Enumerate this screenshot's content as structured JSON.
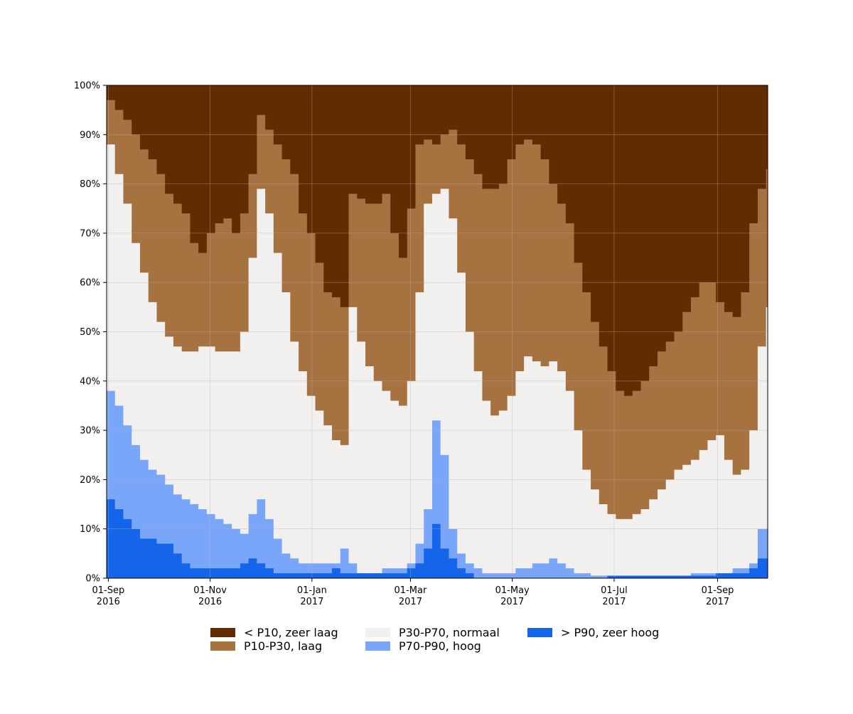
{
  "chart_data": {
    "type": "area",
    "stacked": true,
    "percent": true,
    "title": "",
    "xlabel": "",
    "ylabel": "",
    "ylim": [
      0,
      100
    ],
    "xlim": [
      "2016-08-31",
      "2017-10-01"
    ],
    "grid": true,
    "legend_position": "bottom",
    "y_ticks": [
      {
        "value": 0,
        "label": "0%"
      },
      {
        "value": 10,
        "label": "10%"
      },
      {
        "value": 20,
        "label": "20%"
      },
      {
        "value": 30,
        "label": "30%"
      },
      {
        "value": 40,
        "label": "40%"
      },
      {
        "value": 50,
        "label": "50%"
      },
      {
        "value": 60,
        "label": "60%"
      },
      {
        "value": 70,
        "label": "70%"
      },
      {
        "value": 80,
        "label": "80%"
      },
      {
        "value": 90,
        "label": "90%"
      },
      {
        "value": 100,
        "label": "100%"
      }
    ],
    "x_ticks": [
      {
        "date": "2016-09-01",
        "label1": "01-Sep",
        "label2": "2016"
      },
      {
        "date": "2016-11-01",
        "label1": "01-Nov",
        "label2": "2016"
      },
      {
        "date": "2017-01-01",
        "label1": "01-Jan",
        "label2": "2017"
      },
      {
        "date": "2017-03-01",
        "label1": "01-Mar",
        "label2": "2017"
      },
      {
        "date": "2017-05-01",
        "label1": "01-May",
        "label2": "2017"
      },
      {
        "date": "2017-07-01",
        "label1": "01-Jul",
        "label2": "2017"
      },
      {
        "date": "2017-09-01",
        "label1": "01-Sep",
        "label2": "2017"
      }
    ],
    "x": [
      "2016-08-31",
      "2016-09-05",
      "2016-09-10",
      "2016-09-15",
      "2016-09-20",
      "2016-09-25",
      "2016-09-30",
      "2016-10-05",
      "2016-10-10",
      "2016-10-15",
      "2016-10-20",
      "2016-10-25",
      "2016-10-30",
      "2016-11-04",
      "2016-11-09",
      "2016-11-14",
      "2016-11-19",
      "2016-11-24",
      "2016-11-29",
      "2016-12-04",
      "2016-12-09",
      "2016-12-14",
      "2016-12-19",
      "2016-12-24",
      "2016-12-29",
      "2017-01-03",
      "2017-01-08",
      "2017-01-13",
      "2017-01-18",
      "2017-01-23",
      "2017-01-28",
      "2017-02-02",
      "2017-02-07",
      "2017-02-12",
      "2017-02-17",
      "2017-02-22",
      "2017-02-27",
      "2017-03-04",
      "2017-03-09",
      "2017-03-14",
      "2017-03-19",
      "2017-03-24",
      "2017-03-29",
      "2017-04-03",
      "2017-04-08",
      "2017-04-13",
      "2017-04-18",
      "2017-04-23",
      "2017-04-28",
      "2017-05-03",
      "2017-05-08",
      "2017-05-13",
      "2017-05-18",
      "2017-05-23",
      "2017-05-28",
      "2017-06-02",
      "2017-06-07",
      "2017-06-12",
      "2017-06-17",
      "2017-06-22",
      "2017-06-27",
      "2017-07-02",
      "2017-07-07",
      "2017-07-12",
      "2017-07-17",
      "2017-07-22",
      "2017-07-27",
      "2017-08-01",
      "2017-08-06",
      "2017-08-11",
      "2017-08-16",
      "2017-08-21",
      "2017-08-26",
      "2017-08-31",
      "2017-09-05",
      "2017-09-10",
      "2017-09-15",
      "2017-09-20",
      "2017-09-25",
      "2017-09-30"
    ],
    "series": [
      {
        "name": "> P90, zeer hoog",
        "color": "#1565ea",
        "values": [
          16,
          14,
          12,
          10,
          8,
          8,
          7,
          7,
          5,
          3,
          2,
          2,
          2,
          2,
          2,
          2,
          3,
          4,
          3,
          2,
          1,
          1,
          1,
          1,
          1,
          1,
          1,
          2,
          1,
          1,
          1,
          1,
          1,
          1,
          1,
          1,
          2,
          3,
          6,
          11,
          6,
          4,
          2,
          1,
          0,
          0,
          0,
          0,
          0,
          0,
          0,
          0,
          0,
          0,
          0,
          0,
          0,
          0,
          0,
          0,
          0.5,
          0.5,
          0.5,
          0.5,
          0.5,
          0.5,
          0.5,
          0.5,
          0.5,
          0.5,
          0.5,
          0.5,
          0.5,
          1,
          1,
          1,
          1,
          2,
          4,
          4
        ]
      },
      {
        "name": "P70-P90, hoog",
        "color": "#7aa6f9",
        "values": [
          38,
          35,
          31,
          27,
          24,
          22,
          21,
          19,
          17,
          16,
          15,
          14,
          13,
          12,
          11,
          10,
          9,
          13,
          16,
          12,
          8,
          5,
          4,
          3,
          3,
          3,
          3,
          3,
          6,
          3,
          1,
          1,
          1,
          2,
          2,
          2,
          3,
          7,
          14,
          32,
          25,
          10,
          5,
          3,
          2,
          1,
          1,
          1,
          1,
          2,
          2,
          3,
          3,
          4,
          3,
          2,
          1,
          1,
          0.5,
          0.5,
          0.5,
          0.5,
          0.5,
          0.5,
          0.5,
          0.5,
          0.5,
          0.5,
          0.5,
          0.5,
          1,
          1,
          1,
          1,
          1,
          2,
          2,
          3,
          10,
          10
        ]
      },
      {
        "name": "P30-P70, normaal",
        "color": "#f2f0ef",
        "values": [
          88,
          82,
          76,
          68,
          62,
          56,
          52,
          49,
          47,
          46,
          46,
          47,
          47,
          46,
          46,
          46,
          50,
          65,
          79,
          74,
          66,
          58,
          48,
          42,
          37,
          34,
          31,
          28,
          27,
          55,
          48,
          43,
          40,
          38,
          36,
          35,
          40,
          58,
          76,
          78,
          79,
          73,
          62,
          50,
          42,
          36,
          33,
          34,
          37,
          42,
          45,
          44,
          43,
          44,
          42,
          38,
          30,
          22,
          18,
          15,
          13,
          12,
          12,
          13,
          14,
          16,
          18,
          20,
          22,
          23,
          24,
          26,
          28,
          29,
          24,
          21,
          22,
          30,
          47,
          55
        ]
      },
      {
        "name": "P10-P30, laag",
        "color": "#a67240",
        "values": [
          97,
          95,
          93,
          90,
          87,
          85,
          82,
          78,
          76,
          74,
          68,
          66,
          70,
          72,
          73,
          70,
          74,
          82,
          94,
          91,
          88,
          85,
          82,
          74,
          70,
          64,
          58,
          57,
          55,
          78,
          77,
          76,
          76,
          78,
          70,
          65,
          75,
          88,
          89,
          88,
          90,
          91,
          88,
          85,
          82,
          79,
          79,
          80,
          85,
          88,
          89,
          88,
          85,
          80,
          76,
          72,
          64,
          58,
          52,
          47,
          42,
          38,
          37,
          38,
          40,
          43,
          46,
          48,
          50,
          54,
          57,
          60,
          60,
          56,
          54,
          53,
          58,
          72,
          79,
          83
        ]
      }
    ]
  },
  "legend": {
    "items": [
      {
        "label": "< P10, zeer laag",
        "color": "#632b00"
      },
      {
        "label": "P10-P30, laag",
        "color": "#a67240"
      },
      {
        "label": "P30-P70, normaal",
        "color": "#f2f0ef"
      },
      {
        "label": "P70-P90, hoog",
        "color": "#7aa6f9"
      },
      {
        "label": "> P90, zeer hoog",
        "color": "#1565ea"
      }
    ]
  },
  "colors": {
    "top_band": "#632b00",
    "grid": "#b0b0b0"
  }
}
